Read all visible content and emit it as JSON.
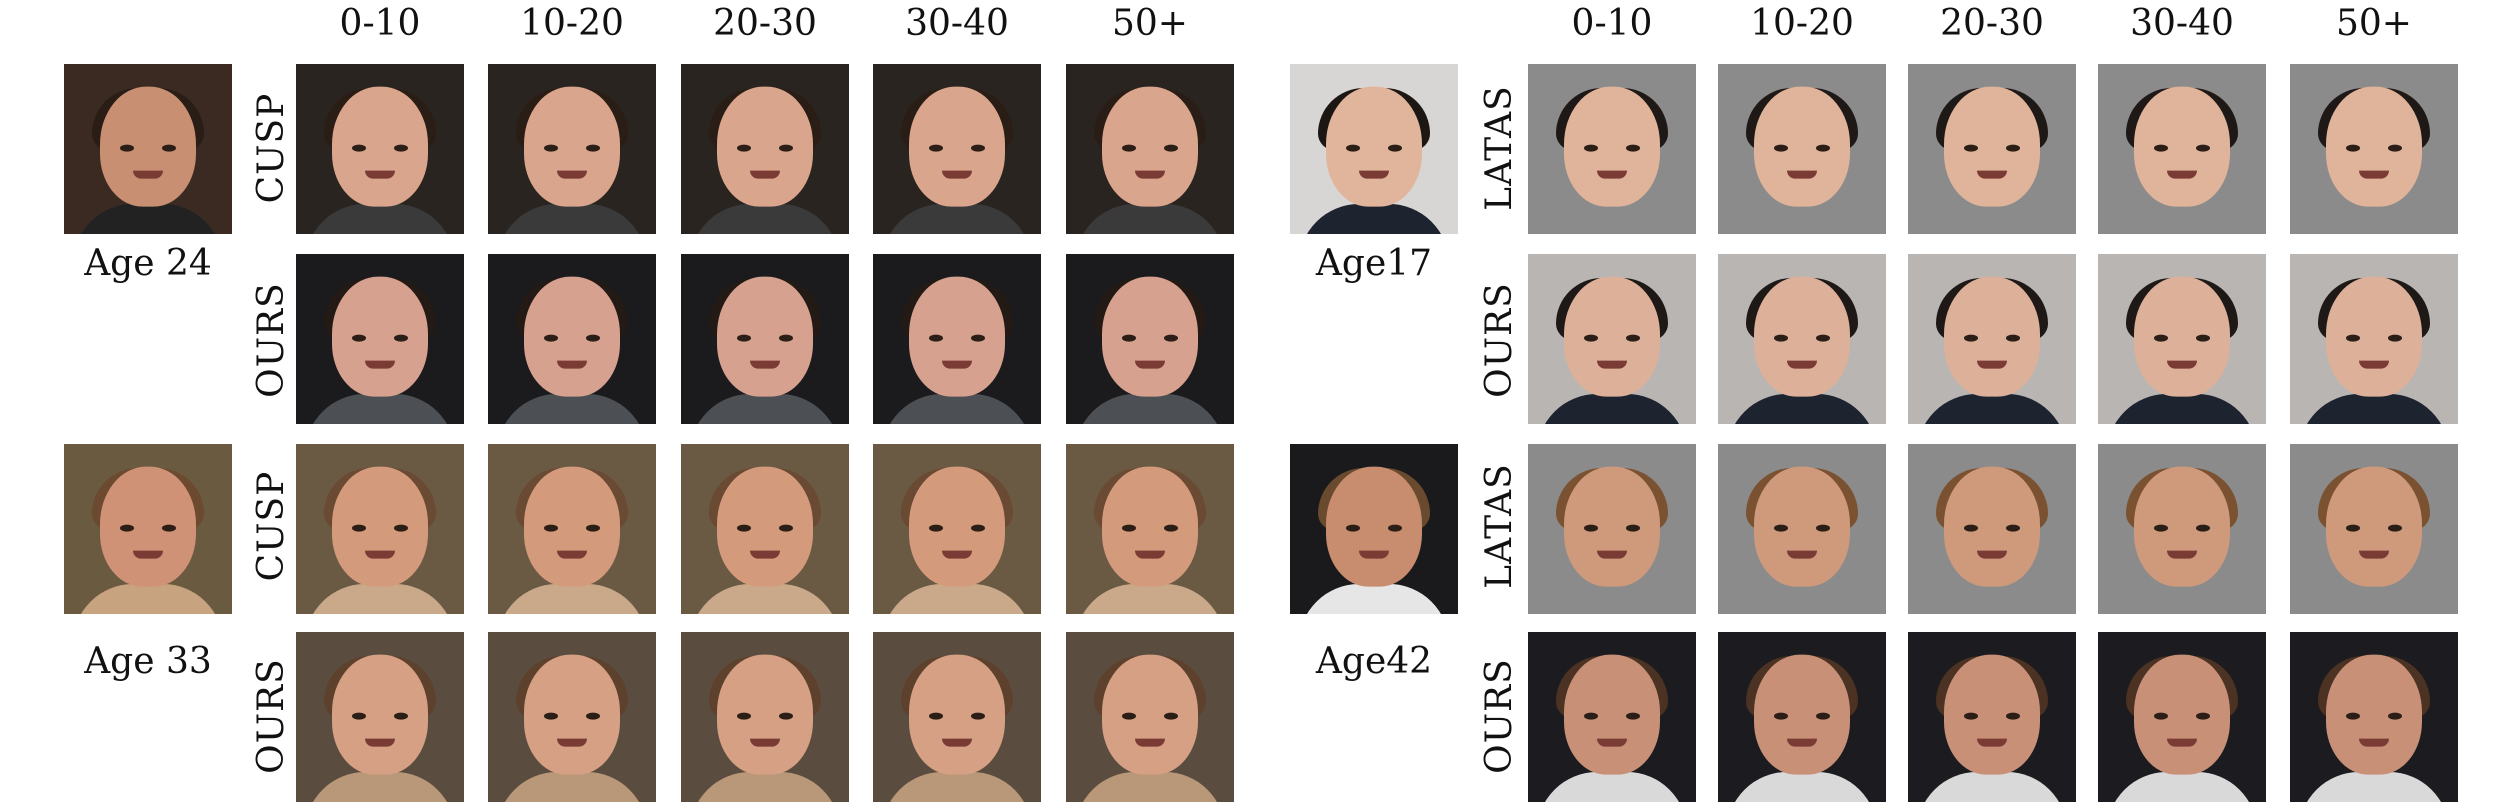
{
  "columns": [
    "0-10",
    "10-20",
    "20-30",
    "30-40",
    "50+"
  ],
  "left_panel": {
    "groups": [
      {
        "age_label": "Age 24",
        "rows": [
          {
            "method": "CUSP",
            "background": "#2a2420",
            "skin": "#d9a58c",
            "hair": "#2a1d16",
            "shirt": "#3a3a3a"
          },
          {
            "method": "OURS",
            "background": "#1b1b1d",
            "skin": "#d7a190",
            "hair": "#231a15",
            "shirt": "#4c4f53"
          }
        ],
        "input": {
          "background": "#3a2a22",
          "skin": "#c98f72",
          "hair": "#2a1d16",
          "shirt": "#222222"
        }
      },
      {
        "age_label": "Age 33",
        "rows": [
          {
            "method": "CUSP",
            "background": "#6a5a44",
            "skin": "#d49a7c",
            "hair": "#6a4a32",
            "shirt": "#c9a98a"
          },
          {
            "method": "OURS",
            "background": "#5a4c3e",
            "skin": "#d5a084",
            "hair": "#5e412c",
            "shirt": "#b89878"
          }
        ],
        "input": {
          "background": "#6a5b40",
          "skin": "#d09276",
          "hair": "#6b4a2f",
          "shirt": "#c7a37f"
        }
      }
    ]
  },
  "right_panel": {
    "groups": [
      {
        "age_label": "Age17",
        "rows": [
          {
            "method": "LATAS",
            "background": "#8b8b8b",
            "skin": "#e0b49a",
            "hair": "#1e1916",
            "shirt": "#8b8b8b"
          },
          {
            "method": "OURS",
            "background": "#b9b5b2",
            "skin": "#ddb09a",
            "hair": "#1e1916",
            "shirt": "#1d2430"
          }
        ],
        "input": {
          "background": "#d8d6d4",
          "skin": "#e1b59c",
          "hair": "#1d1714",
          "shirt": "#1d2430"
        }
      },
      {
        "age_label": "Age42",
        "rows": [
          {
            "method": "LATAS",
            "background": "#8b8b8b",
            "skin": "#cf9a7c",
            "hair": "#7a5232",
            "shirt": "#8b8b8b"
          },
          {
            "method": "OURS",
            "background": "#1c1c20",
            "skin": "#c99078",
            "hair": "#4b3222",
            "shirt": "#d9d9d9"
          }
        ],
        "input": {
          "background": "#1a1a1c",
          "skin": "#c88c6f",
          "hair": "#6a4a2e",
          "shirt": "#e6e6e6"
        }
      }
    ]
  }
}
